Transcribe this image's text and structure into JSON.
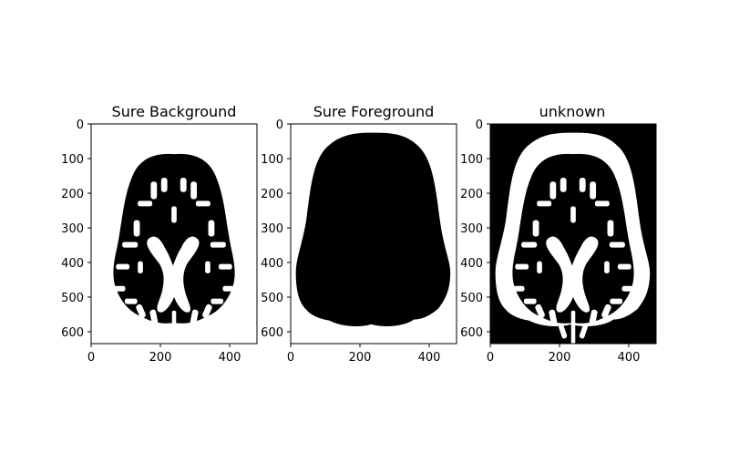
{
  "figure": {
    "panels": [
      {
        "title": "Sure Background",
        "image": "brain-mask-sure-background"
      },
      {
        "title": "Sure Foreground",
        "image": "brain-mask-sure-foreground"
      },
      {
        "title": "unknown",
        "image": "brain-mask-unknown"
      }
    ],
    "x_ticks": [
      "0",
      "200",
      "400"
    ],
    "y_ticks": [
      "0",
      "100",
      "200",
      "300",
      "400",
      "500",
      "600"
    ]
  }
}
